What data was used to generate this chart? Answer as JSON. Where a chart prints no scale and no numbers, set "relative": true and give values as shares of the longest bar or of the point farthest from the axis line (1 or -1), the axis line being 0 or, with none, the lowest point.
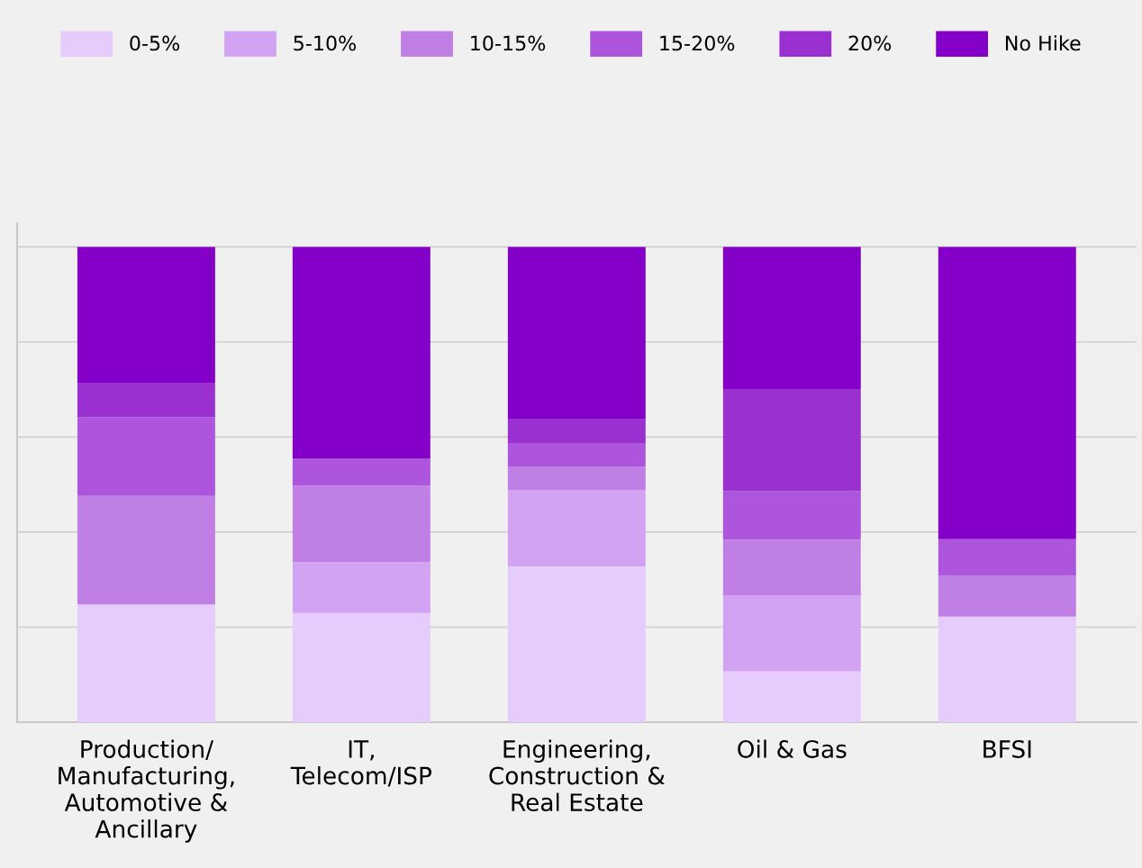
{
  "chart_data": {
    "type": "bar",
    "stacked": true,
    "relative": true,
    "grid": "y",
    "legend": "top",
    "categories": [
      "Production/\nManufacturing,\nAutomotive &\nAncillary",
      "IT,\nTelecom/ISP",
      "Engineering,\nConstruction &\nReal Estate",
      "Oil & Gas",
      "BFSI"
    ],
    "series": [
      {
        "name": "0-5%",
        "color": "#e6ccfc",
        "values": [
          0.248,
          0.23,
          0.328,
          0.107,
          0.222
        ]
      },
      {
        "name": "5-10%",
        "color": "#d3a3f3",
        "values": [
          0,
          0.107,
          0.16,
          0.16,
          0
        ]
      },
      {
        "name": "10-15%",
        "color": "#bf7fe5",
        "values": [
          0.228,
          0.161,
          0.049,
          0.117,
          0.086
        ]
      },
      {
        "name": "15-20%",
        "color": "#ad55dc",
        "values": [
          0.166,
          0.056,
          0.049,
          0.102,
          0.077
        ]
      },
      {
        "name": "20%",
        "color": "#9a30d0",
        "values": [
          0.072,
          0,
          0.051,
          0.215,
          0
        ]
      },
      {
        "name": "No Hike",
        "color": "#8400c8",
        "values": [
          0.286,
          0.446,
          0.363,
          0.299,
          0.615
        ]
      }
    ]
  }
}
